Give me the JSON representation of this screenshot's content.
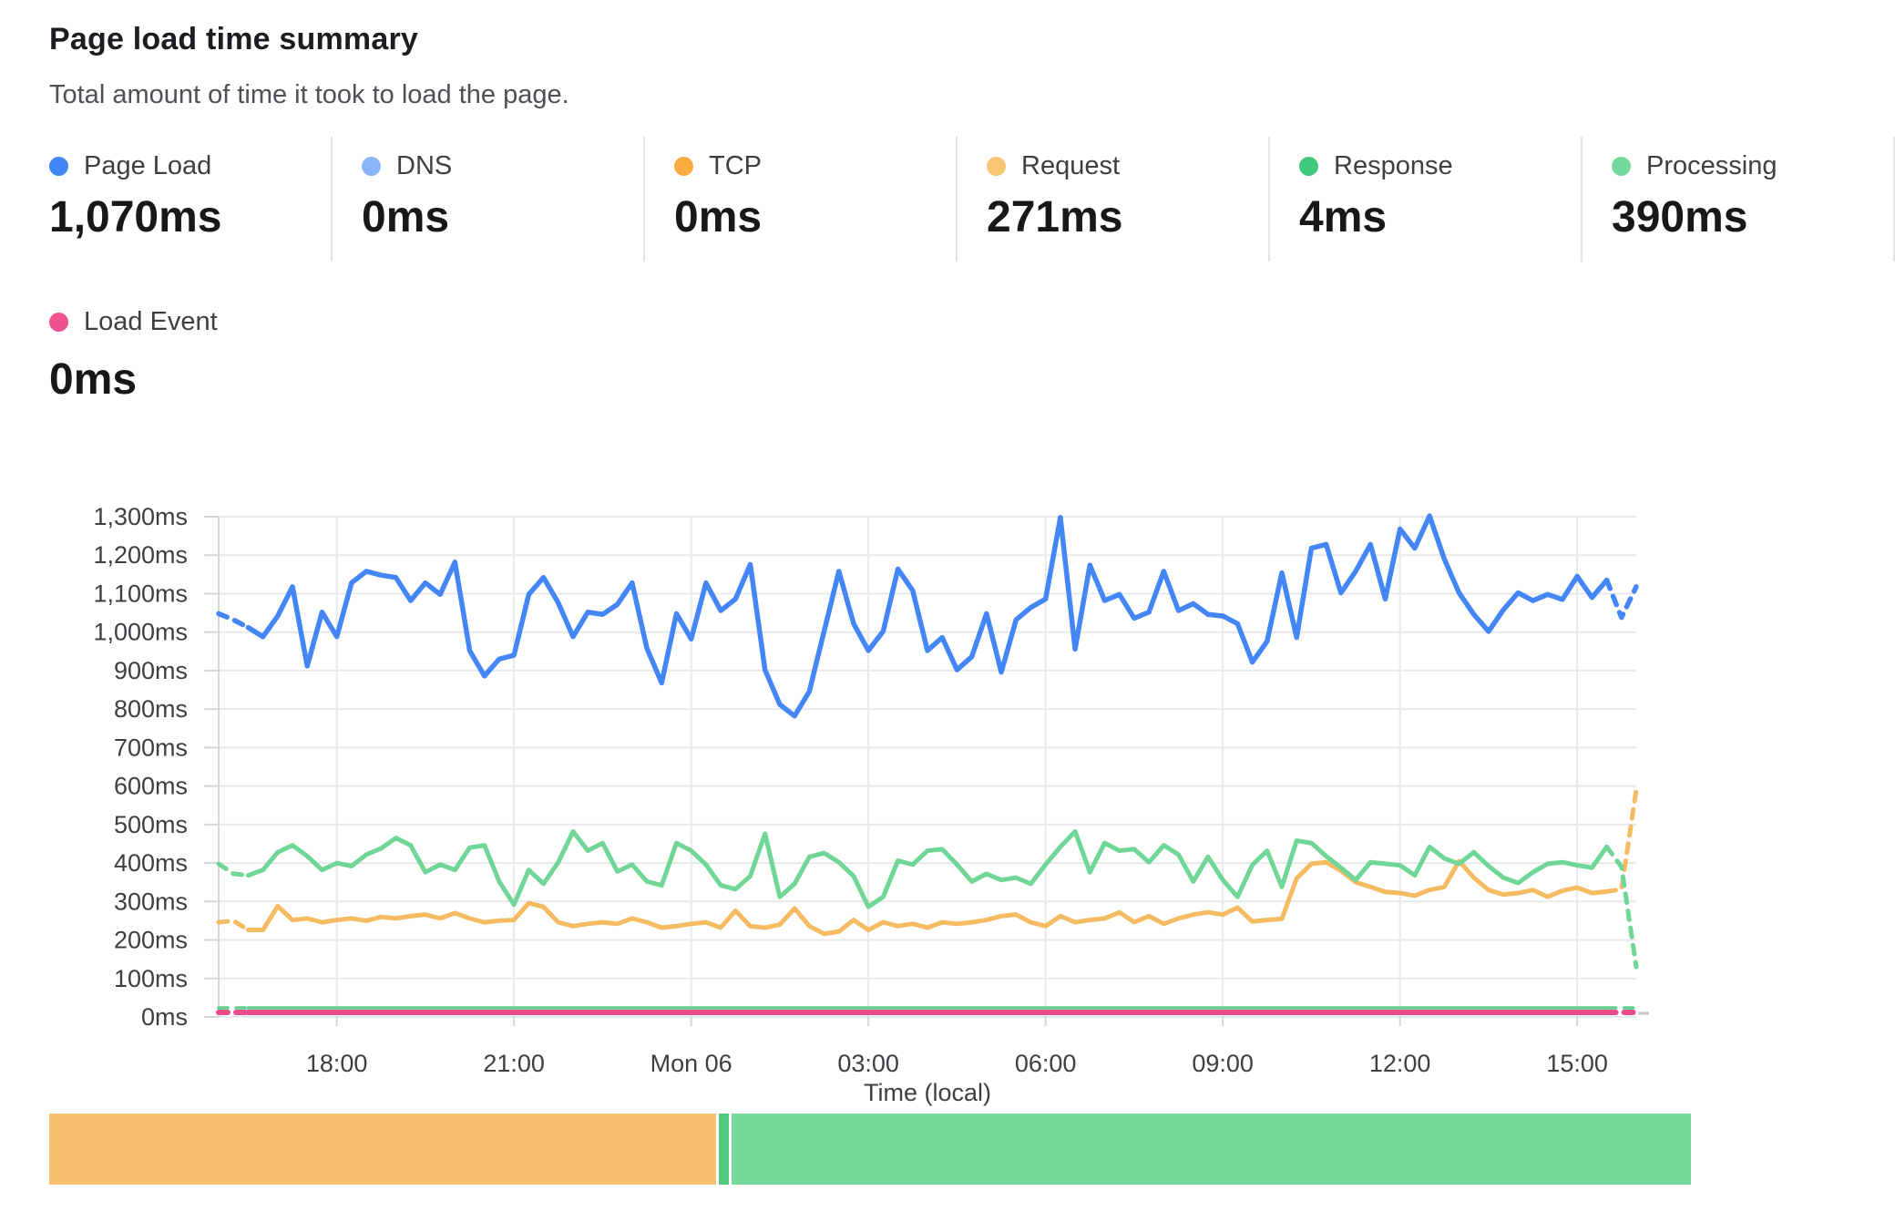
{
  "header": {
    "title": "Page load time summary",
    "subtitle": "Total amount of time it took to load the page."
  },
  "metrics": [
    {
      "id": "page_load",
      "label": "Page Load",
      "value": "1,070ms",
      "color": "#4285f4"
    },
    {
      "id": "dns",
      "label": "DNS",
      "value": "0ms",
      "color": "#8ab4f8"
    },
    {
      "id": "tcp",
      "label": "TCP",
      "value": "0ms",
      "color": "#f9ab40"
    },
    {
      "id": "request",
      "label": "Request",
      "value": "271ms",
      "color": "#f8c572"
    },
    {
      "id": "response",
      "label": "Response",
      "value": "4ms",
      "color": "#40c87d"
    },
    {
      "id": "processing",
      "label": "Processing",
      "value": "390ms",
      "color": "#74d99c"
    }
  ],
  "metrics_row2": [
    {
      "id": "load_event",
      "label": "Load Event",
      "value": "0ms",
      "color": "#ee5390"
    }
  ],
  "chart_data": {
    "type": "line",
    "title": "Page load time summary",
    "xlabel": "Time (local)",
    "ylabel": "",
    "ylim": [
      0,
      1300
    ],
    "grid": true,
    "y_tick_labels": [
      "1,300ms",
      "1,200ms",
      "1,100ms",
      "1,000ms",
      "900ms",
      "800ms",
      "700ms",
      "600ms",
      "500ms",
      "400ms",
      "300ms",
      "200ms",
      "100ms",
      "0ms"
    ],
    "x_tick_labels": [
      "18:00",
      "21:00",
      "Mon 06",
      "03:00",
      "06:00",
      "09:00",
      "12:00",
      "15:00"
    ],
    "x_tick_indices": [
      8,
      20,
      32,
      44,
      56,
      68,
      80,
      92
    ],
    "x_interval_minutes": 15,
    "series": [
      {
        "name": "DNS",
        "color": "#8ab4f8",
        "width": 3,
        "constant": 0,
        "hidden_under_load_event": true
      },
      {
        "name": "TCP",
        "color": "#f9ab40",
        "width": 3,
        "constant": 0,
        "hidden_under_load_event": true
      },
      {
        "name": "Request",
        "color": "#f5bb63",
        "width": 5,
        "values": [
          246,
          250,
          226,
          226,
          288,
          252,
          256,
          246,
          252,
          256,
          250,
          260,
          256,
          262,
          266,
          256,
          270,
          256,
          246,
          250,
          252,
          296,
          286,
          246,
          236,
          242,
          246,
          242,
          256,
          246,
          232,
          236,
          242,
          246,
          232,
          276,
          236,
          232,
          240,
          282,
          236,
          216,
          222,
          252,
          226,
          246,
          236,
          242,
          232,
          246,
          242,
          246,
          252,
          262,
          266,
          246,
          236,
          262,
          246,
          252,
          256,
          272,
          246,
          262,
          242,
          256,
          266,
          272,
          266,
          284,
          248,
          252,
          255,
          360,
          398,
          402,
          380,
          350,
          338,
          325,
          322,
          315,
          330,
          338,
          405,
          362,
          330,
          318,
          322,
          330,
          312,
          328,
          336,
          322,
          326,
          332,
          590
        ]
      },
      {
        "name": "Processing",
        "color": "#70d697",
        "width": 5,
        "values": [
          398,
          372,
          368,
          382,
          428,
          446,
          418,
          382,
          400,
          392,
          422,
          438,
          465,
          446,
          376,
          396,
          382,
          440,
          446,
          352,
          292,
          382,
          346,
          402,
          482,
          432,
          452,
          378,
          396,
          352,
          342,
          452,
          432,
          396,
          342,
          332,
          366,
          476,
          312,
          346,
          416,
          426,
          402,
          366,
          286,
          312,
          406,
          396,
          432,
          436,
          396,
          352,
          372,
          356,
          362,
          346,
          396,
          442,
          482,
          376,
          452,
          432,
          436,
          402,
          446,
          422,
          352,
          416,
          356,
          312,
          395,
          432,
          338,
          458,
          452,
          418,
          388,
          356,
          402,
          398,
          394,
          368,
          442,
          412,
          398,
          428,
          392,
          362,
          348,
          376,
          398,
          402,
          394,
          388,
          442,
          390,
          130
        ]
      },
      {
        "name": "Response",
        "color": "#5fcf8b",
        "width": 3.5,
        "constant": 4
      },
      {
        "name": "Load Event",
        "color": "#e94c8b",
        "width": 6,
        "constant": 0
      },
      {
        "name": "Page Load",
        "color": "#4486f5",
        "width": 5.5,
        "values": [
          1048,
          1032,
          1012,
          988,
          1042,
          1118,
          912,
          1052,
          988,
          1128,
          1158,
          1148,
          1142,
          1082,
          1128,
          1098,
          1182,
          952,
          886,
          930,
          940,
          1098,
          1142,
          1076,
          988,
          1052,
          1046,
          1072,
          1128,
          958,
          868,
          1048,
          982,
          1128,
          1056,
          1086,
          1176,
          902,
          812,
          782,
          846,
          1002,
          1158,
          1022,
          952,
          1002,
          1164,
          1108,
          952,
          986,
          902,
          936,
          1048,
          896,
          1032,
          1064,
          1086,
          1298,
          956,
          1174,
          1082,
          1098,
          1036,
          1052,
          1158,
          1056,
          1074,
          1046,
          1042,
          1022,
          922,
          976,
          1154,
          986,
          1218,
          1228,
          1102,
          1158,
          1228,
          1086,
          1268,
          1218,
          1302,
          1190,
          1102,
          1046,
          1002,
          1058,
          1102,
          1082,
          1098,
          1085,
          1145,
          1090,
          1135,
          1038,
          1118
        ]
      }
    ]
  },
  "breakdown_bar": {
    "segments": [
      {
        "name": "Request",
        "color": "#f8c170",
        "value": 271
      },
      {
        "name": "Response",
        "color": "#4fca7c",
        "value": 4
      },
      {
        "name": "Processing",
        "color": "#76d99b",
        "value": 390
      }
    ]
  }
}
